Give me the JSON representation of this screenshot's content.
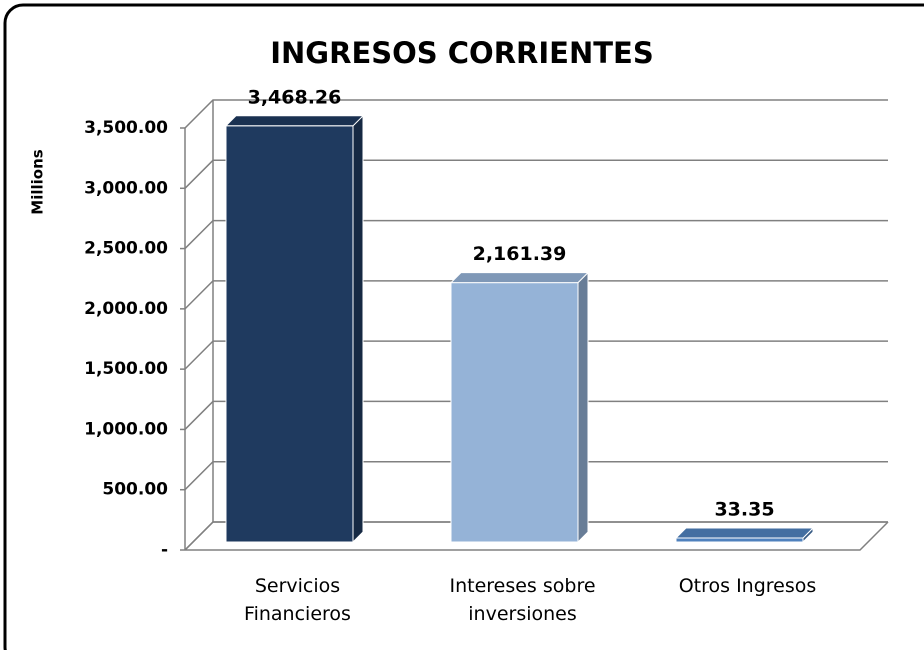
{
  "chart_data": {
    "type": "bar3d",
    "title": "INGRESOS CORRIENTES",
    "y_axis_label": "Millions",
    "categories": [
      "Servicios Financieros",
      "Intereses sobre inversiones",
      "Otros Ingresos"
    ],
    "values": [
      3468.26,
      2161.39,
      33.35
    ],
    "value_labels": [
      "3,468.26",
      "2,161.39",
      "33.35"
    ],
    "colors": [
      "#1f3a5f",
      "#95b3d7",
      "#4f81bd"
    ],
    "ylim": [
      0,
      3500
    ],
    "yticks": [
      {
        "value": 0,
        "label": "-"
      },
      {
        "value": 500,
        "label": "500.00"
      },
      {
        "value": 1000,
        "label": "1,000.00"
      },
      {
        "value": 1500,
        "label": "1,500.00"
      },
      {
        "value": 2000,
        "label": "2,000.00"
      },
      {
        "value": 2500,
        "label": "2,500.00"
      },
      {
        "value": 3000,
        "label": "3,000.00"
      },
      {
        "value": 3500,
        "label": "3,500.00"
      }
    ],
    "grid": true
  }
}
